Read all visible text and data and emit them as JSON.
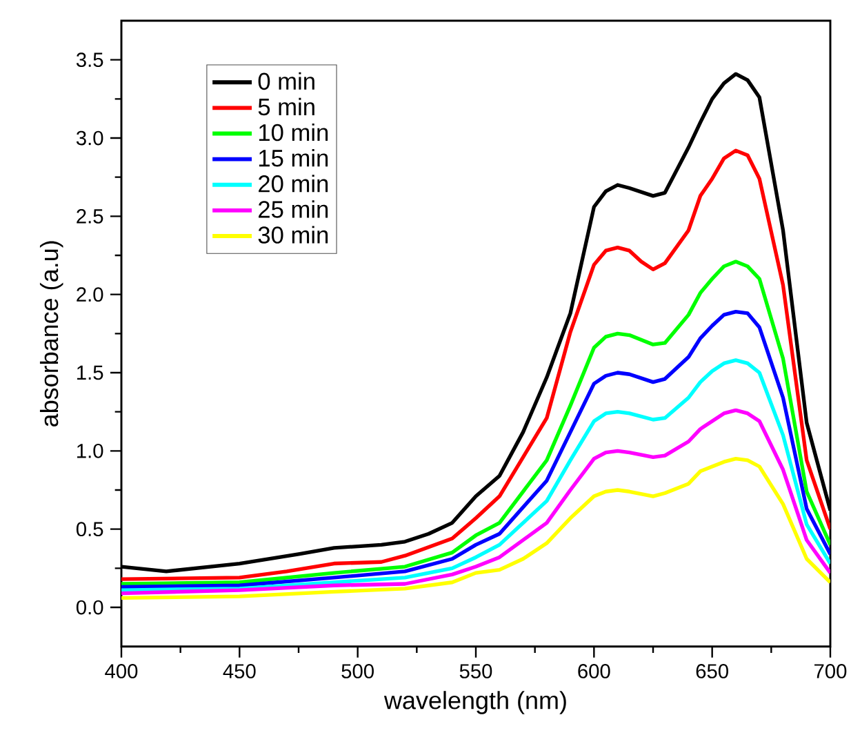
{
  "chart_data": {
    "type": "line",
    "xlabel": "wavelength (nm)",
    "ylabel": "absorbance (a.u)",
    "xlim": [
      400,
      700
    ],
    "ylim": [
      -0.25,
      3.75
    ],
    "xticks": [
      400,
      450,
      500,
      550,
      600,
      650,
      700
    ],
    "yticks": [
      {
        "value": 0,
        "label": "0.0"
      },
      {
        "value": 0.5,
        "label": "0.5"
      },
      {
        "value": 1,
        "label": "1.0"
      },
      {
        "value": 1.5,
        "label": "1.5"
      },
      {
        "value": 2,
        "label": "2.0"
      },
      {
        "value": 2.5,
        "label": "2.5"
      },
      {
        "value": 3,
        "label": "3.0"
      },
      {
        "value": 3.5,
        "label": "3.5"
      }
    ],
    "legend": "top left",
    "grid": false,
    "marker": "none",
    "line_style": "solid",
    "series": [
      {
        "name": "0 min",
        "color": "#000000",
        "x": [
          400,
          419,
          450,
          475,
          490,
          510,
          520,
          530,
          540,
          550,
          560,
          570,
          580,
          590,
          600,
          605,
          610,
          615,
          625,
          630,
          640,
          645,
          650,
          655,
          660,
          665,
          670,
          680,
          690,
          700
        ],
        "values": [
          0.26,
          0.23,
          0.28,
          0.34,
          0.38,
          0.4,
          0.42,
          0.47,
          0.54,
          0.71,
          0.84,
          1.12,
          1.47,
          1.88,
          2.56,
          2.66,
          2.7,
          2.68,
          2.63,
          2.65,
          2.94,
          3.1,
          3.25,
          3.35,
          3.41,
          3.37,
          3.26,
          2.41,
          1.18,
          0.62
        ]
      },
      {
        "name": "5 min",
        "color": "#ff0000",
        "x": [
          400,
          450,
          470,
          490,
          510,
          520,
          540,
          550,
          560,
          580,
          590,
          600,
          605,
          610,
          615,
          620,
          625,
          630,
          640,
          645,
          650,
          655,
          660,
          665,
          670,
          680,
          690,
          700
        ],
        "values": [
          0.18,
          0.19,
          0.23,
          0.28,
          0.29,
          0.33,
          0.44,
          0.57,
          0.71,
          1.21,
          1.76,
          2.19,
          2.28,
          2.3,
          2.28,
          2.21,
          2.16,
          2.2,
          2.41,
          2.63,
          2.74,
          2.87,
          2.92,
          2.89,
          2.74,
          2.06,
          0.94,
          0.5
        ]
      },
      {
        "name": "10 min",
        "color": "#00ff00",
        "x": [
          400,
          450,
          490,
          520,
          540,
          550,
          560,
          580,
          590,
          600,
          605,
          610,
          615,
          625,
          630,
          640,
          645,
          650,
          655,
          660,
          665,
          670,
          680,
          690,
          700
        ],
        "values": [
          0.15,
          0.16,
          0.22,
          0.26,
          0.35,
          0.46,
          0.54,
          0.94,
          1.29,
          1.66,
          1.73,
          1.75,
          1.74,
          1.68,
          1.69,
          1.87,
          2.01,
          2.1,
          2.18,
          2.21,
          2.18,
          2.1,
          1.59,
          0.74,
          0.4
        ]
      },
      {
        "name": "15 min",
        "color": "#0000ff",
        "x": [
          400,
          450,
          490,
          520,
          540,
          550,
          560,
          580,
          590,
          600,
          605,
          610,
          615,
          625,
          630,
          640,
          645,
          650,
          655,
          660,
          665,
          670,
          680,
          690,
          700
        ],
        "values": [
          0.13,
          0.14,
          0.19,
          0.23,
          0.31,
          0.4,
          0.47,
          0.81,
          1.12,
          1.43,
          1.48,
          1.5,
          1.49,
          1.44,
          1.46,
          1.6,
          1.72,
          1.8,
          1.87,
          1.89,
          1.88,
          1.79,
          1.34,
          0.63,
          0.34
        ]
      },
      {
        "name": "20 min",
        "color": "#00ffff",
        "x": [
          400,
          450,
          490,
          520,
          540,
          550,
          560,
          580,
          590,
          600,
          605,
          610,
          615,
          625,
          630,
          640,
          645,
          650,
          655,
          660,
          665,
          670,
          680,
          690,
          700
        ],
        "values": [
          0.11,
          0.12,
          0.16,
          0.19,
          0.25,
          0.32,
          0.4,
          0.68,
          0.94,
          1.19,
          1.24,
          1.25,
          1.24,
          1.2,
          1.21,
          1.34,
          1.44,
          1.51,
          1.56,
          1.58,
          1.56,
          1.5,
          1.1,
          0.53,
          0.28
        ]
      },
      {
        "name": "25 min",
        "color": "#ff00ff",
        "x": [
          400,
          450,
          490,
          520,
          540,
          550,
          560,
          580,
          590,
          600,
          605,
          610,
          615,
          625,
          630,
          640,
          645,
          650,
          655,
          660,
          665,
          670,
          680,
          690,
          700
        ],
        "values": [
          0.09,
          0.11,
          0.14,
          0.15,
          0.21,
          0.26,
          0.32,
          0.54,
          0.75,
          0.95,
          0.99,
          1.0,
          0.99,
          0.96,
          0.97,
          1.06,
          1.14,
          1.19,
          1.24,
          1.26,
          1.24,
          1.19,
          0.88,
          0.43,
          0.22
        ]
      },
      {
        "name": "30 min",
        "color": "#ffff00",
        "x": [
          400,
          450,
          490,
          520,
          540,
          550,
          560,
          570,
          580,
          590,
          600,
          605,
          610,
          615,
          625,
          630,
          640,
          645,
          650,
          655,
          660,
          665,
          670,
          680,
          690,
          700
        ],
        "values": [
          0.06,
          0.07,
          0.1,
          0.12,
          0.16,
          0.22,
          0.24,
          0.31,
          0.41,
          0.57,
          0.71,
          0.74,
          0.75,
          0.74,
          0.71,
          0.73,
          0.79,
          0.87,
          0.9,
          0.93,
          0.95,
          0.94,
          0.9,
          0.66,
          0.31,
          0.16
        ]
      }
    ]
  }
}
